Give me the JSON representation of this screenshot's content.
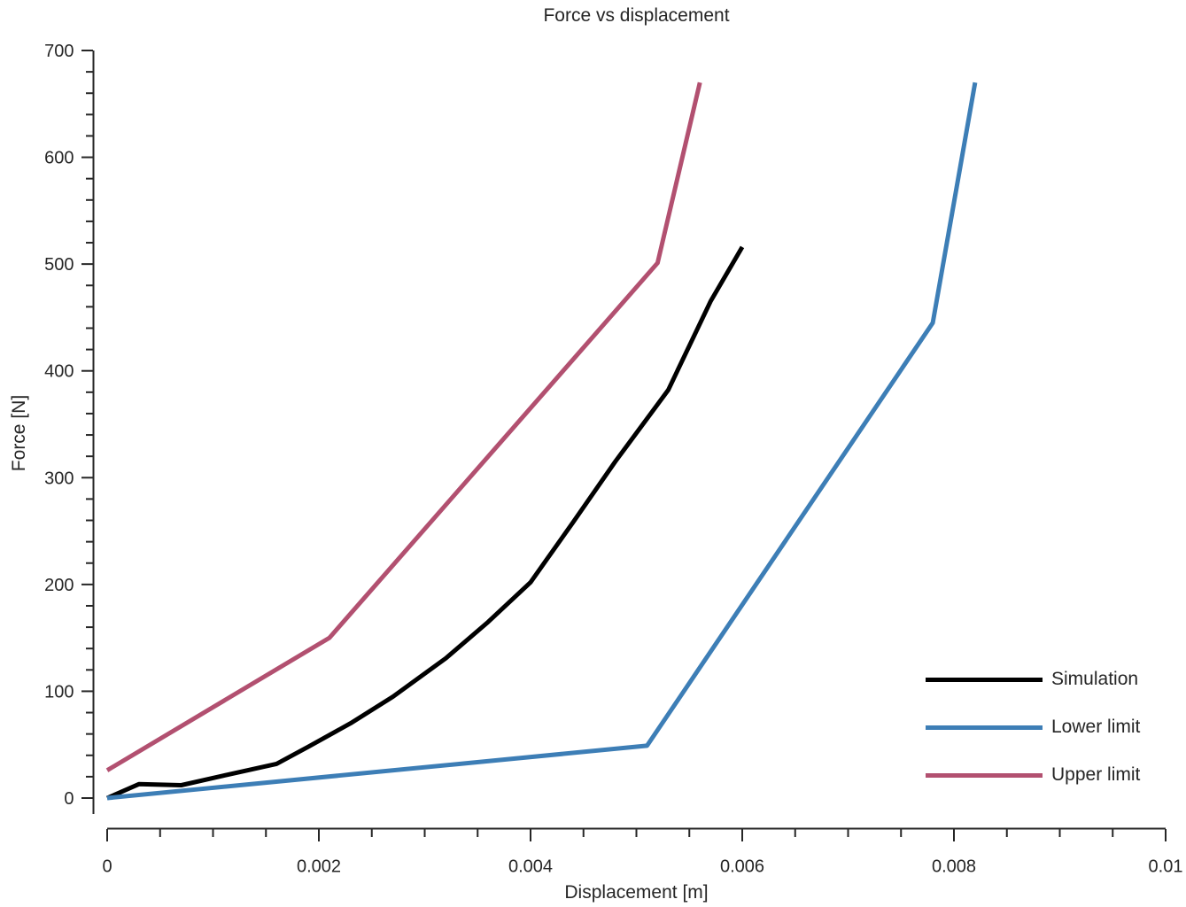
{
  "title": "Force vs displacement",
  "axes": {
    "x": {
      "label": "Displacement [m]",
      "min": 0,
      "max": 0.01,
      "major_step": 0.002,
      "minor_step": 0.0005,
      "tick_labels": [
        "0",
        "0.002",
        "0.004",
        "0.006",
        "0.008",
        "0.01"
      ]
    },
    "y": {
      "label": "Force [N]",
      "min": 0,
      "max": 700,
      "major_step": 100,
      "minor_step": 20,
      "tick_labels": [
        "0",
        "100",
        "200",
        "300",
        "400",
        "500",
        "600",
        "700"
      ]
    }
  },
  "legend": [
    {
      "label": "Simulation",
      "color": "#000000"
    },
    {
      "label": "Lower limit",
      "color": "#3D7EB6"
    },
    {
      "label": "Upper limit",
      "color": "#B25070"
    }
  ],
  "colors": {
    "text": "#262626",
    "axis": "#262626",
    "background": "#ffffff"
  },
  "chart_data": {
    "type": "line",
    "title": "Force vs displacement",
    "xlabel": "Displacement [m]",
    "ylabel": "Force [N]",
    "xlim": [
      0,
      0.01
    ],
    "ylim": [
      0,
      700
    ],
    "grid": false,
    "legend_position": "lower right",
    "series": [
      {
        "name": "Simulation",
        "color": "#000000",
        "x": [
          0,
          0.0003,
          0.0007,
          0.0011,
          0.0016,
          0.0019,
          0.0023,
          0.0027,
          0.0032,
          0.0036,
          0.004,
          0.0044,
          0.0048,
          0.0053,
          0.0057,
          0.006
        ],
        "y": [
          0,
          13,
          12,
          21,
          32,
          48,
          70,
          95,
          131,
          165,
          202,
          258,
          315,
          382,
          465,
          516
        ]
      },
      {
        "name": "Lower limit",
        "color": "#3D7EB6",
        "x": [
          0,
          0.0051,
          0.0078,
          0.0082
        ],
        "y": [
          0,
          49,
          445,
          670
        ]
      },
      {
        "name": "Upper limit",
        "color": "#B25070",
        "x": [
          0,
          0.0021,
          0.0052,
          0.0056
        ],
        "y": [
          26,
          150,
          501,
          670
        ]
      }
    ]
  }
}
